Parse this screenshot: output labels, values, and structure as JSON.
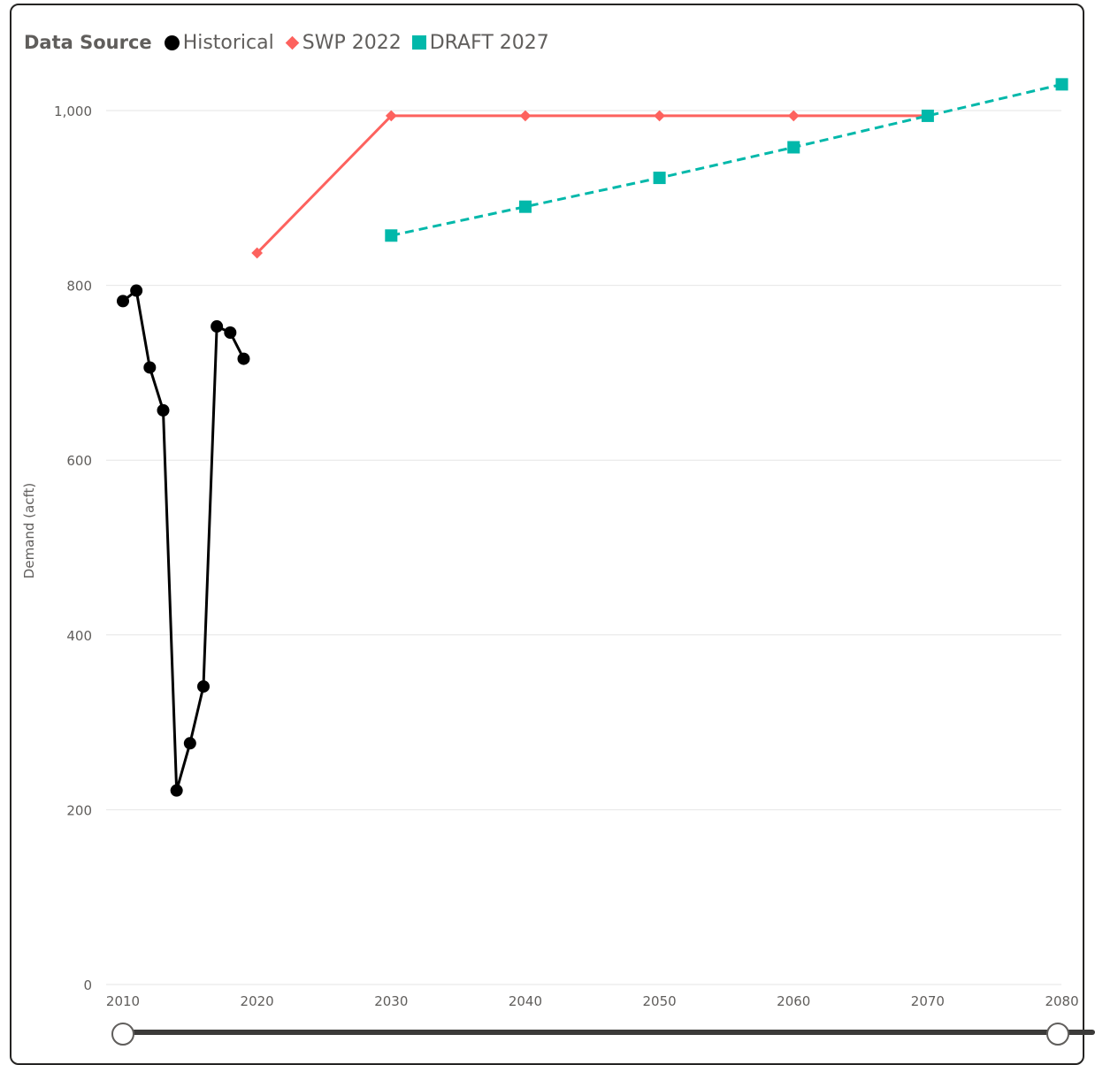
{
  "legend": {
    "title": "Data Source"
  },
  "chart_data": {
    "type": "line",
    "ylabel": "Demand (acft)",
    "xlabel": "",
    "ylim": [
      0,
      1000
    ],
    "y_ticks": [
      "0",
      "200",
      "400",
      "600",
      "800",
      "1,000"
    ],
    "y_tick_values": [
      0,
      200,
      400,
      600,
      800,
      1000
    ],
    "x_ticks": [
      "2010",
      "2020",
      "2030",
      "2040",
      "2050",
      "2060",
      "2070",
      "2080"
    ],
    "x_tick_values": [
      2010,
      2020,
      2030,
      2040,
      2050,
      2060,
      2070,
      2080
    ],
    "grid": true,
    "legend_position": "top-left",
    "series": [
      {
        "name": "Historical",
        "color": "#000000",
        "marker": "circle",
        "dash": "solid",
        "x": [
          2010,
          2011,
          2012,
          2013,
          2014,
          2015,
          2016,
          2017,
          2018,
          2019
        ],
        "y": [
          782,
          794,
          706,
          657,
          222,
          276,
          341,
          753,
          746,
          716
        ]
      },
      {
        "name": "SWP 2022",
        "color": "#fd625e",
        "marker": "diamond",
        "dash": "solid",
        "x": [
          2020,
          2030,
          2040,
          2050,
          2060,
          2070
        ],
        "y": [
          837,
          994,
          994,
          994,
          994,
          994
        ]
      },
      {
        "name": "DRAFT 2027",
        "color": "#01b8aa",
        "marker": "square",
        "dash": "dashed",
        "x": [
          2030,
          2040,
          2050,
          2060,
          2070,
          2080
        ],
        "y": [
          857,
          890,
          923,
          958,
          994,
          1030
        ]
      }
    ]
  }
}
